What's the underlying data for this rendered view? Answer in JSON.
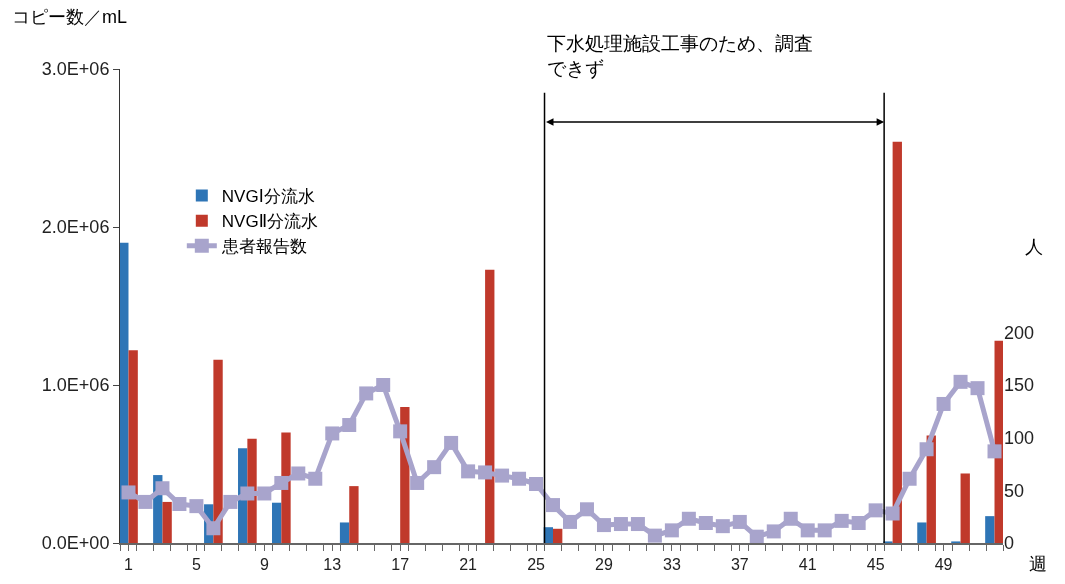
{
  "chart_data": {
    "type": "bar",
    "ylabel": "コピー数／mL",
    "y2label": "人",
    "xlabel": "週",
    "series": [
      {
        "name": "NVGⅠ分流水",
        "color": "#2e75b6",
        "x": [
          1,
          3,
          6,
          8,
          10,
          14,
          26,
          46,
          48,
          50,
          52
        ],
        "values": [
          1900000,
          430000,
          245000,
          600000,
          255000,
          130000,
          100000,
          10000,
          130000,
          10000,
          170000
        ]
      },
      {
        "name": "NVGⅡ分流水",
        "color": "#c0392b",
        "x": [
          1,
          3,
          6,
          8,
          10,
          14,
          17,
          22,
          26,
          46,
          48,
          50,
          52
        ],
        "values": [
          1220000,
          260000,
          1160000,
          660000,
          700000,
          360000,
          860000,
          1730000,
          90000,
          2540000,
          680000,
          440000,
          1280000
        ]
      },
      {
        "name": "患者報告数",
        "type": "line",
        "axis": "y2",
        "color": "#a8a4cc",
        "marker": "square",
        "x": [
          1,
          2,
          3,
          4,
          5,
          6,
          7,
          8,
          9,
          10,
          11,
          12,
          13,
          14,
          15,
          16,
          17,
          18,
          19,
          20,
          21,
          22,
          23,
          24,
          25,
          26,
          27,
          28,
          29,
          30,
          31,
          32,
          33,
          34,
          35,
          36,
          37,
          38,
          39,
          40,
          41,
          42,
          43,
          44,
          45,
          46,
          47,
          48,
          49,
          50,
          51,
          52
        ],
        "values": [
          48,
          39,
          52,
          37,
          35,
          14,
          39,
          47,
          47,
          57,
          66,
          61,
          104,
          112,
          142,
          150,
          106,
          57,
          72,
          95,
          68,
          67,
          64,
          61,
          56,
          36,
          20,
          32,
          17,
          18,
          18,
          7,
          12,
          23,
          19,
          16,
          20,
          6,
          11,
          23,
          12,
          12,
          21,
          19,
          31,
          28,
          61,
          89,
          132,
          153,
          147,
          87
        ]
      }
    ],
    "xlim": [
      0.5,
      52.5
    ],
    "xticks": [
      1,
      5,
      9,
      13,
      17,
      21,
      25,
      29,
      33,
      37,
      41,
      45,
      49
    ],
    "ylim": [
      0,
      3000000
    ],
    "yticks": [
      {
        "value": 0,
        "label": "0.0E+00"
      },
      {
        "value": 1000000,
        "label": "1.0E+06"
      },
      {
        "value": 2000000,
        "label": "2.0E+06"
      },
      {
        "value": 3000000,
        "label": "3.0E+06"
      }
    ],
    "y2lim": [
      0,
      450
    ],
    "y2ticks": [
      0,
      50,
      100,
      150,
      200
    ],
    "ref_lines": [
      {
        "axis": "x",
        "value": 25.5,
        "color": "#000000"
      },
      {
        "axis": "x",
        "value": 45.5,
        "color": "#000000"
      }
    ],
    "annotations": [
      "下水処理施設工事のため、調査できず"
    ],
    "grid": false,
    "legend": "top left"
  }
}
